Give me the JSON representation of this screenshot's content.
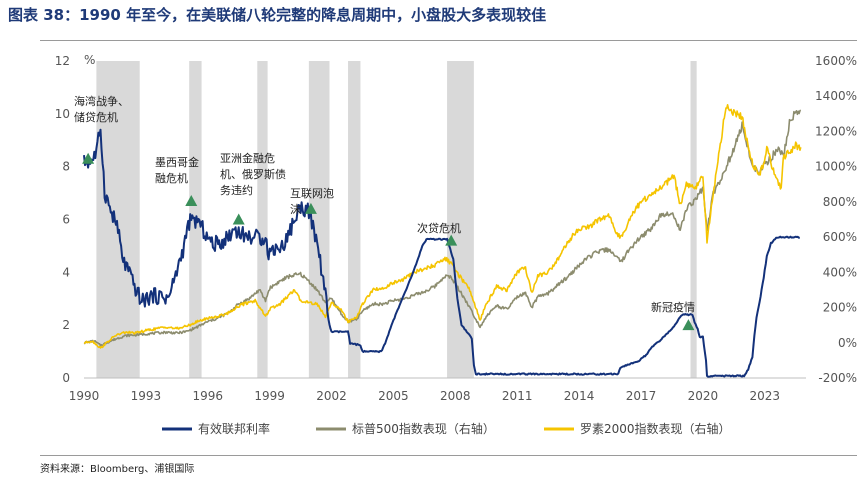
{
  "title": "图表 38：1990 年至今，在美联储八轮完整的降息周期中，小盘股大多表现较佳",
  "source": "资料来源：Bloomberg、浦银国际",
  "colors": {
    "fed": "#13317a",
    "sp500": "#8c8c6e",
    "r2000": "#f5c400",
    "recession": "#d9d9d9",
    "marker": "#3a8f5a"
  },
  "chart_data": {
    "type": "line",
    "x_range": [
      1990,
      2025
    ],
    "x_ticks": [
      "1990",
      "1993",
      "1996",
      "1999",
      "2002",
      "2005",
      "2008",
      "2011",
      "2014",
      "2017",
      "2020",
      "2023"
    ],
    "y_left": {
      "unit": "%",
      "range": [
        0,
        12
      ],
      "ticks": [
        "0",
        "2",
        "4",
        "6",
        "8",
        "10",
        "12"
      ]
    },
    "y_right": {
      "range": [
        -200,
        1600
      ],
      "ticks": [
        "-200%",
        "0%",
        "200%",
        "400%",
        "600%",
        "800%",
        "1000%",
        "1200%",
        "1400%",
        "1600%"
      ]
    },
    "shaded_periods": [
      [
        1990.6,
        1992.7
      ],
      [
        1995.1,
        1995.7
      ],
      [
        1998.4,
        1998.9
      ],
      [
        2000.9,
        2001.9
      ],
      [
        2002.8,
        2003.4
      ],
      [
        2007.6,
        2008.9
      ],
      [
        2019.4,
        2019.7
      ]
    ],
    "series": [
      {
        "name": "有效联邦利率",
        "axis": "left",
        "points": [
          [
            1990.0,
            8.3
          ],
          [
            1990.3,
            8.25
          ],
          [
            1990.6,
            8.6
          ],
          [
            1990.8,
            9.3
          ],
          [
            1991.0,
            7.0
          ],
          [
            1991.3,
            6.1
          ],
          [
            1991.6,
            5.7
          ],
          [
            1991.9,
            4.6
          ],
          [
            1992.1,
            4.0
          ],
          [
            1992.4,
            3.75
          ],
          [
            1992.8,
            3.0
          ],
          [
            1993.3,
            3.0
          ],
          [
            1993.9,
            3.0
          ],
          [
            1994.1,
            3.2
          ],
          [
            1994.4,
            4.0
          ],
          [
            1994.8,
            5.0
          ],
          [
            1995.1,
            5.9
          ],
          [
            1995.5,
            6.0
          ],
          [
            1995.8,
            5.75
          ],
          [
            1996.2,
            5.3
          ],
          [
            1996.6,
            5.3
          ],
          [
            1997.0,
            5.3
          ],
          [
            1997.3,
            5.5
          ],
          [
            1997.9,
            5.5
          ],
          [
            1998.3,
            5.5
          ],
          [
            1998.7,
            5.5
          ],
          [
            1998.8,
            5.25
          ],
          [
            1998.9,
            4.9
          ],
          [
            1999.3,
            4.8
          ],
          [
            1999.6,
            5.0
          ],
          [
            1999.9,
            5.3
          ],
          [
            2000.2,
            5.8
          ],
          [
            2000.5,
            6.5
          ],
          [
            2000.9,
            6.5
          ],
          [
            2001.0,
            6.0
          ],
          [
            2001.3,
            5.0
          ],
          [
            2001.6,
            3.75
          ],
          [
            2001.8,
            2.5
          ],
          [
            2001.9,
            2.0
          ],
          [
            2002.0,
            1.75
          ],
          [
            2002.8,
            1.75
          ],
          [
            2002.9,
            1.3
          ],
          [
            2003.4,
            1.25
          ],
          [
            2003.5,
            1.0
          ],
          [
            2004.4,
            1.0
          ],
          [
            2004.6,
            1.3
          ],
          [
            2004.9,
            2.0
          ],
          [
            2005.3,
            2.75
          ],
          [
            2005.7,
            3.5
          ],
          [
            2006.1,
            4.3
          ],
          [
            2006.4,
            5.0
          ],
          [
            2006.6,
            5.25
          ],
          [
            2007.6,
            5.25
          ],
          [
            2007.7,
            5.0
          ],
          [
            2007.9,
            4.5
          ],
          [
            2008.1,
            3.0
          ],
          [
            2008.3,
            2.0
          ],
          [
            2008.8,
            1.5
          ],
          [
            2008.9,
            0.5
          ],
          [
            2009.0,
            0.15
          ],
          [
            2010.0,
            0.15
          ],
          [
            2012.0,
            0.15
          ],
          [
            2015.9,
            0.15
          ],
          [
            2016.0,
            0.4
          ],
          [
            2016.9,
            0.65
          ],
          [
            2017.3,
            0.9
          ],
          [
            2017.5,
            1.15
          ],
          [
            2017.9,
            1.4
          ],
          [
            2018.3,
            1.7
          ],
          [
            2018.6,
            1.95
          ],
          [
            2018.8,
            2.2
          ],
          [
            2019.0,
            2.4
          ],
          [
            2019.5,
            2.4
          ],
          [
            2019.6,
            2.1
          ],
          [
            2019.75,
            1.85
          ],
          [
            2019.85,
            1.55
          ],
          [
            2020.0,
            1.55
          ],
          [
            2020.15,
            0.65
          ],
          [
            2020.2,
            0.07
          ],
          [
            2021.0,
            0.08
          ],
          [
            2022.0,
            0.08
          ],
          [
            2022.2,
            0.33
          ],
          [
            2022.4,
            0.8
          ],
          [
            2022.5,
            1.6
          ],
          [
            2022.6,
            2.3
          ],
          [
            2022.8,
            3.1
          ],
          [
            2022.95,
            3.8
          ],
          [
            2023.1,
            4.6
          ],
          [
            2023.3,
            5.1
          ],
          [
            2023.6,
            5.33
          ],
          [
            2024.7,
            5.33
          ]
        ]
      },
      {
        "name": "标普500指数表现（右轴）",
        "axis": "right",
        "points": [
          [
            1990.0,
            0
          ],
          [
            1990.5,
            10
          ],
          [
            1990.8,
            -15
          ],
          [
            1991.0,
            -5
          ],
          [
            1991.5,
            20
          ],
          [
            1992.0,
            40
          ],
          [
            1992.5,
            45
          ],
          [
            1993.0,
            50
          ],
          [
            1994.0,
            60
          ],
          [
            1994.5,
            55
          ],
          [
            1995.0,
            65
          ],
          [
            1995.5,
            90
          ],
          [
            1996.0,
            120
          ],
          [
            1996.5,
            140
          ],
          [
            1997.0,
            170
          ],
          [
            1997.5,
            220
          ],
          [
            1998.0,
            250
          ],
          [
            1998.5,
            300
          ],
          [
            1998.8,
            240
          ],
          [
            1999.0,
            310
          ],
          [
            1999.5,
            350
          ],
          [
            2000.0,
            380
          ],
          [
            2000.5,
            390
          ],
          [
            2000.9,
            350
          ],
          [
            2001.3,
            300
          ],
          [
            2001.7,
            230
          ],
          [
            2002.0,
            250
          ],
          [
            2002.5,
            160
          ],
          [
            2002.8,
            120
          ],
          [
            2003.2,
            130
          ],
          [
            2003.5,
            180
          ],
          [
            2004.0,
            220
          ],
          [
            2004.5,
            220
          ],
          [
            2005.0,
            240
          ],
          [
            2005.5,
            250
          ],
          [
            2006.0,
            270
          ],
          [
            2006.5,
            290
          ],
          [
            2007.0,
            320
          ],
          [
            2007.5,
            380
          ],
          [
            2007.8,
            370
          ],
          [
            2008.2,
            300
          ],
          [
            2008.7,
            200
          ],
          [
            2009.2,
            90
          ],
          [
            2009.5,
            150
          ],
          [
            2010.0,
            210
          ],
          [
            2010.5,
            190
          ],
          [
            2011.0,
            260
          ],
          [
            2011.4,
            280
          ],
          [
            2011.7,
            200
          ],
          [
            2012.0,
            260
          ],
          [
            2012.5,
            280
          ],
          [
            2013.0,
            330
          ],
          [
            2013.5,
            380
          ],
          [
            2014.0,
            440
          ],
          [
            2014.5,
            490
          ],
          [
            2015.0,
            520
          ],
          [
            2015.5,
            530
          ],
          [
            2015.8,
            480
          ],
          [
            2016.1,
            470
          ],
          [
            2016.5,
            540
          ],
          [
            2017.0,
            600
          ],
          [
            2017.5,
            650
          ],
          [
            2018.0,
            730
          ],
          [
            2018.5,
            740
          ],
          [
            2018.9,
            640
          ],
          [
            2019.2,
            760
          ],
          [
            2019.6,
            810
          ],
          [
            2020.0,
            880
          ],
          [
            2020.2,
            630
          ],
          [
            2020.5,
            850
          ],
          [
            2021.0,
            960
          ],
          [
            2021.5,
            1100
          ],
          [
            2021.9,
            1230
          ],
          [
            2022.3,
            1050
          ],
          [
            2022.7,
            950
          ],
          [
            2022.9,
            1000
          ],
          [
            2023.3,
            1050
          ],
          [
            2023.7,
            1110
          ],
          [
            2023.9,
            1050
          ],
          [
            2024.2,
            1250
          ],
          [
            2024.5,
            1310
          ],
          [
            2024.75,
            1320
          ]
        ]
      },
      {
        "name": "罗素2000指数表现（右轴）",
        "axis": "right",
        "points": [
          [
            1990.0,
            0
          ],
          [
            1990.4,
            10
          ],
          [
            1990.8,
            -30
          ],
          [
            1991.0,
            -10
          ],
          [
            1991.5,
            40
          ],
          [
            1992.0,
            60
          ],
          [
            1992.5,
            55
          ],
          [
            1993.0,
            70
          ],
          [
            1994.0,
            90
          ],
          [
            1994.5,
            80
          ],
          [
            1995.0,
            95
          ],
          [
            1995.5,
            120
          ],
          [
            1996.0,
            140
          ],
          [
            1996.5,
            150
          ],
          [
            1997.0,
            170
          ],
          [
            1997.5,
            210
          ],
          [
            1998.0,
            230
          ],
          [
            1998.3,
            240
          ],
          [
            1998.8,
            150
          ],
          [
            1999.0,
            190
          ],
          [
            1999.5,
            220
          ],
          [
            2000.2,
            300
          ],
          [
            2000.5,
            240
          ],
          [
            2000.9,
            230
          ],
          [
            2001.3,
            220
          ],
          [
            2001.7,
            150
          ],
          [
            2002.0,
            230
          ],
          [
            2002.5,
            180
          ],
          [
            2002.8,
            120
          ],
          [
            2003.2,
            140
          ],
          [
            2003.5,
            220
          ],
          [
            2004.0,
            300
          ],
          [
            2004.5,
            310
          ],
          [
            2005.0,
            340
          ],
          [
            2005.5,
            360
          ],
          [
            2006.0,
            400
          ],
          [
            2006.5,
            420
          ],
          [
            2007.0,
            440
          ],
          [
            2007.5,
            480
          ],
          [
            2007.8,
            450
          ],
          [
            2008.2,
            380
          ],
          [
            2008.7,
            300
          ],
          [
            2009.2,
            130
          ],
          [
            2009.5,
            220
          ],
          [
            2010.0,
            320
          ],
          [
            2010.5,
            300
          ],
          [
            2011.0,
            400
          ],
          [
            2011.4,
            430
          ],
          [
            2011.7,
            280
          ],
          [
            2012.0,
            380
          ],
          [
            2012.5,
            400
          ],
          [
            2013.0,
            480
          ],
          [
            2013.5,
            580
          ],
          [
            2014.0,
            650
          ],
          [
            2014.5,
            660
          ],
          [
            2015.0,
            700
          ],
          [
            2015.5,
            720
          ],
          [
            2015.8,
            620
          ],
          [
            2016.1,
            600
          ],
          [
            2016.5,
            720
          ],
          [
            2017.0,
            800
          ],
          [
            2017.5,
            840
          ],
          [
            2018.0,
            880
          ],
          [
            2018.6,
            950
          ],
          [
            2018.9,
            780
          ],
          [
            2019.2,
            900
          ],
          [
            2019.6,
            880
          ],
          [
            2020.0,
            940
          ],
          [
            2020.2,
            580
          ],
          [
            2020.5,
            850
          ],
          [
            2021.0,
            1250
          ],
          [
            2021.2,
            1350
          ],
          [
            2021.5,
            1300
          ],
          [
            2021.9,
            1290
          ],
          [
            2022.3,
            1050
          ],
          [
            2022.7,
            950
          ],
          [
            2022.9,
            1000
          ],
          [
            2023.1,
            1100
          ],
          [
            2023.5,
            950
          ],
          [
            2023.8,
            880
          ],
          [
            2023.9,
            1050
          ],
          [
            2024.2,
            1080
          ],
          [
            2024.5,
            1120
          ],
          [
            2024.75,
            1110
          ]
        ]
      }
    ],
    "annotations": [
      {
        "lines": [
          "海湾战争、",
          "储贷危机"
        ],
        "x": 1990.2,
        "y": 8.3
      },
      {
        "lines": [
          "墨西哥金",
          "融危机"
        ],
        "x": 1995.2,
        "y": 6.7
      },
      {
        "lines": [
          "亚洲金融危",
          "机、俄罗斯债",
          "务违约"
        ],
        "x": 1997.5,
        "y": 6.0
      },
      {
        "lines": [
          "互联网泡",
          "沫"
        ],
        "x": 2001.0,
        "y": 6.4
      },
      {
        "lines": [
          "次贷危机"
        ],
        "x": 2007.8,
        "y": 5.2
      },
      {
        "lines": [
          "新冠疫情"
        ],
        "x": 2019.3,
        "y": 2.0
      }
    ]
  }
}
